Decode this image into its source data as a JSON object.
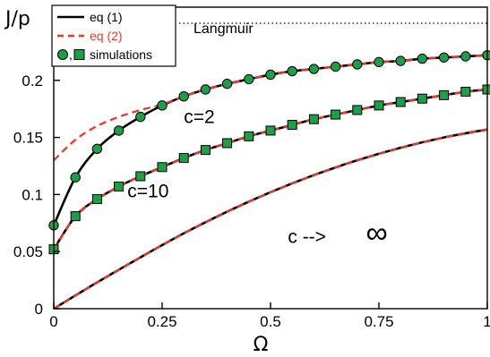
{
  "chart_data": {
    "type": "line",
    "xlabel": "Ω",
    "ylabel": "J/p",
    "xlim": [
      0,
      1
    ],
    "ylim": [
      0,
      0.25
    ],
    "xticks": [
      "0",
      "0.25",
      "0.5",
      "0.75",
      "1"
    ],
    "yticks": [
      "0",
      "0.05",
      "0.1",
      "0.15",
      "0.2"
    ],
    "legend": {
      "placement": "top-left",
      "entries": [
        {
          "label": "eq (1)",
          "style": "solid",
          "color": "#000000"
        },
        {
          "label": "eq (2)",
          "style": "dashed",
          "color": "#e8382b"
        },
        {
          "label": "simulations",
          "style": "markers",
          "color": "#1f9e4a"
        }
      ]
    },
    "langmuir": {
      "label": "Langmuir",
      "y": 0.25
    },
    "annotations": [
      {
        "text": "c=2",
        "x": 0.3,
        "y": 0.168
      },
      {
        "text": "c=10",
        "x": 0.17,
        "y": 0.103
      },
      {
        "text": "c -->",
        "x": 0.54,
        "y": 0.063
      },
      {
        "text": "∞",
        "x": 0.72,
        "y": 0.063
      }
    ],
    "series": [
      {
        "name": "c=2",
        "marker": "circle",
        "x": [
          0,
          0.05,
          0.1,
          0.15,
          0.2,
          0.25,
          0.3,
          0.35,
          0.4,
          0.45,
          0.5,
          0.55,
          0.6,
          0.65,
          0.7,
          0.75,
          0.8,
          0.85,
          0.9,
          0.95,
          1.0
        ],
        "eq1": [
          0.073,
          0.115,
          0.14,
          0.156,
          0.168,
          0.178,
          0.186,
          0.192,
          0.197,
          0.201,
          0.205,
          0.208,
          0.21,
          0.212,
          0.214,
          0.216,
          0.217,
          0.219,
          0.22,
          0.221,
          0.222
        ],
        "eq2": [
          0.13,
          0.148,
          0.16,
          0.168,
          0.174,
          0.179,
          0.186,
          0.192,
          0.197,
          0.201,
          0.205,
          0.208,
          0.21,
          0.212,
          0.214,
          0.216,
          0.217,
          0.219,
          0.22,
          0.221,
          0.222
        ],
        "simulations": [
          0.073,
          0.115,
          0.14,
          0.156,
          0.168,
          0.178,
          0.186,
          0.192,
          0.197,
          0.201,
          0.205,
          0.208,
          0.21,
          0.212,
          0.214,
          0.216,
          0.217,
          0.219,
          0.22,
          0.221,
          0.222
        ]
      },
      {
        "name": "c=10",
        "marker": "square",
        "x": [
          0,
          0.05,
          0.1,
          0.15,
          0.2,
          0.25,
          0.3,
          0.35,
          0.4,
          0.45,
          0.5,
          0.55,
          0.6,
          0.65,
          0.7,
          0.75,
          0.8,
          0.85,
          0.9,
          0.95,
          1.0
        ],
        "eq1": [
          0.052,
          0.081,
          0.096,
          0.107,
          0.116,
          0.124,
          0.132,
          0.139,
          0.145,
          0.151,
          0.156,
          0.161,
          0.166,
          0.17,
          0.174,
          0.178,
          0.181,
          0.184,
          0.187,
          0.19,
          0.192
        ],
        "eq2": [
          0.052,
          0.081,
          0.096,
          0.107,
          0.116,
          0.124,
          0.132,
          0.139,
          0.145,
          0.151,
          0.156,
          0.161,
          0.166,
          0.17,
          0.174,
          0.178,
          0.181,
          0.184,
          0.187,
          0.19,
          0.192
        ],
        "simulations": [
          0.052,
          0.081,
          0.096,
          0.107,
          0.116,
          0.124,
          0.132,
          0.139,
          0.145,
          0.151,
          0.156,
          0.161,
          0.166,
          0.17,
          0.174,
          0.178,
          0.181,
          0.184,
          0.187,
          0.19,
          0.192
        ]
      },
      {
        "name": "c→∞",
        "marker": "none",
        "x": [
          0,
          0.1,
          0.2,
          0.3,
          0.4,
          0.5,
          0.6,
          0.7,
          0.8,
          0.9,
          1.0
        ],
        "eq1": [
          0,
          0.023,
          0.045,
          0.066,
          0.085,
          0.102,
          0.117,
          0.13,
          0.141,
          0.15,
          0.157
        ],
        "eq2": [
          0,
          0.023,
          0.045,
          0.066,
          0.085,
          0.102,
          0.117,
          0.13,
          0.141,
          0.15,
          0.157
        ]
      }
    ]
  }
}
